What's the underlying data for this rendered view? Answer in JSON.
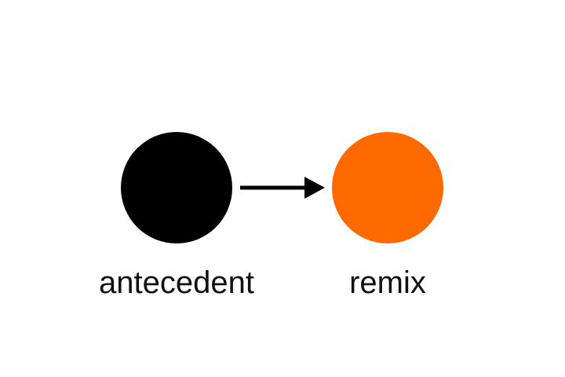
{
  "diagram": {
    "type": "flow",
    "nodes": [
      {
        "id": "antecedent",
        "label": "antecedent",
        "color": "#000000"
      },
      {
        "id": "remix",
        "label": "remix",
        "color": "#FF6A00"
      }
    ],
    "edges": [
      {
        "from": "antecedent",
        "to": "remix",
        "directed": true
      }
    ],
    "colors": {
      "arrow": "#000000",
      "background": "#ffffff"
    }
  }
}
